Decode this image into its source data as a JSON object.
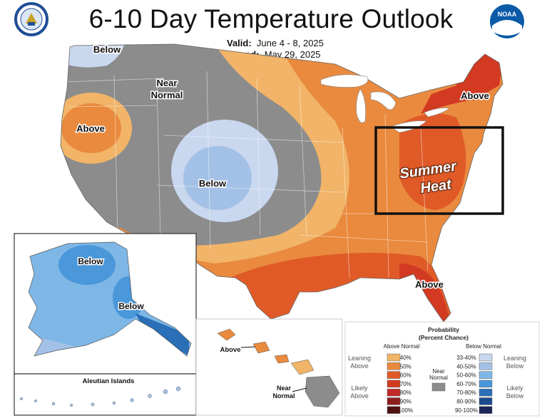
{
  "header": {
    "title": "6-10 Day Temperature Outlook",
    "valid_label": "Valid:",
    "valid_value": "June 4 - 8, 2025",
    "issued_label": "Issued:",
    "issued_value": "May 29, 2025"
  },
  "logos": {
    "left": "Department of Commerce seal",
    "right": "NOAA",
    "left_color": "#1f4e96",
    "right_color": "#0a5aa8"
  },
  "map_labels": {
    "below_nw": "Below",
    "near_normal_line1": "Near",
    "near_normal_line2": "Normal",
    "above_west": "Above",
    "below_rockies": "Below",
    "above_northeast": "Above",
    "summer_line1": "Summer",
    "summer_line2": "Heat",
    "above_southeast": "Above",
    "alaska_below_north": "Below",
    "alaska_below_east": "Below",
    "aleutian": "Aleutian Islands",
    "hawaii_above": "Above",
    "hawaii_near_line1": "Near",
    "hawaii_near_line2": "Normal"
  },
  "legend": {
    "title_line1": "Probability",
    "title_line2": "(Percent Chance)",
    "above_header": "Above Normal",
    "below_header": "Below Normal",
    "near_line1": "Near",
    "near_line2": "Normal",
    "leaning_above_1": "Leaning",
    "leaning_above_2": "Above",
    "likely_above_1": "Likely",
    "likely_above_2": "Above",
    "leaning_below_1": "Leaning",
    "leaning_below_2": "Below",
    "likely_below_1": "Likely",
    "likely_below_2": "Below",
    "above_bins": [
      {
        "label": "33-40%",
        "color": "#f1b468"
      },
      {
        "label": "40-50%",
        "color": "#e98a3e"
      },
      {
        "label": "50-60%",
        "color": "#e05a28"
      },
      {
        "label": "60-70%",
        "color": "#d23a22"
      },
      {
        "label": "70-80%",
        "color": "#c22a2a"
      },
      {
        "label": "80-90%",
        "color": "#8e1e1e"
      },
      {
        "label": "90-100%",
        "color": "#4f1010"
      }
    ],
    "below_bins": [
      {
        "label": "33-40%",
        "color": "#c9d7ef"
      },
      {
        "label": "40-50%",
        "color": "#a3c1e6"
      },
      {
        "label": "50-60%",
        "color": "#7eb7e6"
      },
      {
        "label": "60-70%",
        "color": "#4a97da"
      },
      {
        "label": "70-80%",
        "color": "#2a6fb7"
      },
      {
        "label": "80-90%",
        "color": "#1b4a8f"
      },
      {
        "label": "90-100%",
        "color": "#1b2456"
      }
    ],
    "near_color": "#8c8c8c"
  }
}
